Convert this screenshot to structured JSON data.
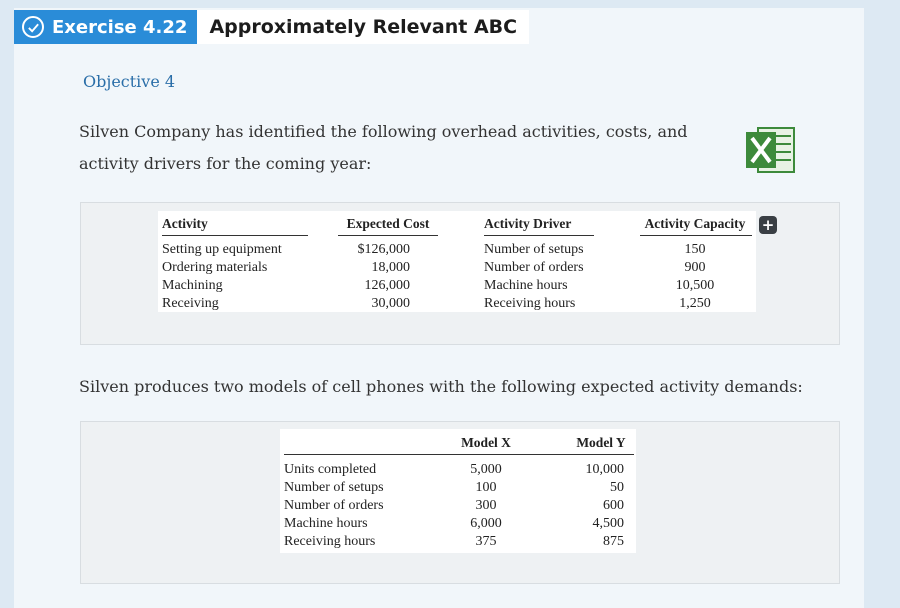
{
  "header": {
    "exercise_label": "Exercise 4.22",
    "title": "Approximately Relevant ABC"
  },
  "objective": "Objective 4",
  "intro_text": "Silven Company has identified the following overhead activities, costs, and activity drivers for the coming year:",
  "table1": {
    "headers": [
      "Activity",
      "Expected Cost",
      "Activity Driver",
      "Activity Capacity"
    ],
    "rows": [
      [
        "Setting up equipment",
        "$126,000",
        "Number of setups",
        "150"
      ],
      [
        "Ordering materials",
        "18,000",
        "Number of orders",
        "900"
      ],
      [
        "Machining",
        "126,000",
        "Machine hours",
        "10,500"
      ],
      [
        "Receiving",
        "30,000",
        "Receiving hours",
        "1,250"
      ]
    ]
  },
  "plus_label": "+",
  "sentence2": "Silven produces two models of cell phones with the following expected activity demands:",
  "table2": {
    "headers": [
      "",
      "Model X",
      "Model Y"
    ],
    "rows": [
      [
        "Units completed",
        "5,000",
        "10,000"
      ],
      [
        "Number of setups",
        "100",
        "50"
      ],
      [
        "Number of orders",
        "300",
        "600"
      ],
      [
        "Machine hours",
        "6,000",
        "4,500"
      ],
      [
        "Receiving hours",
        "375",
        "875"
      ]
    ]
  },
  "colors": {
    "accent": "#2a8cd8",
    "objective": "#2a6ea8",
    "excel_green": "#3d8a3b"
  },
  "icons": [
    "check-circle-icon",
    "excel-icon",
    "plus-icon"
  ]
}
